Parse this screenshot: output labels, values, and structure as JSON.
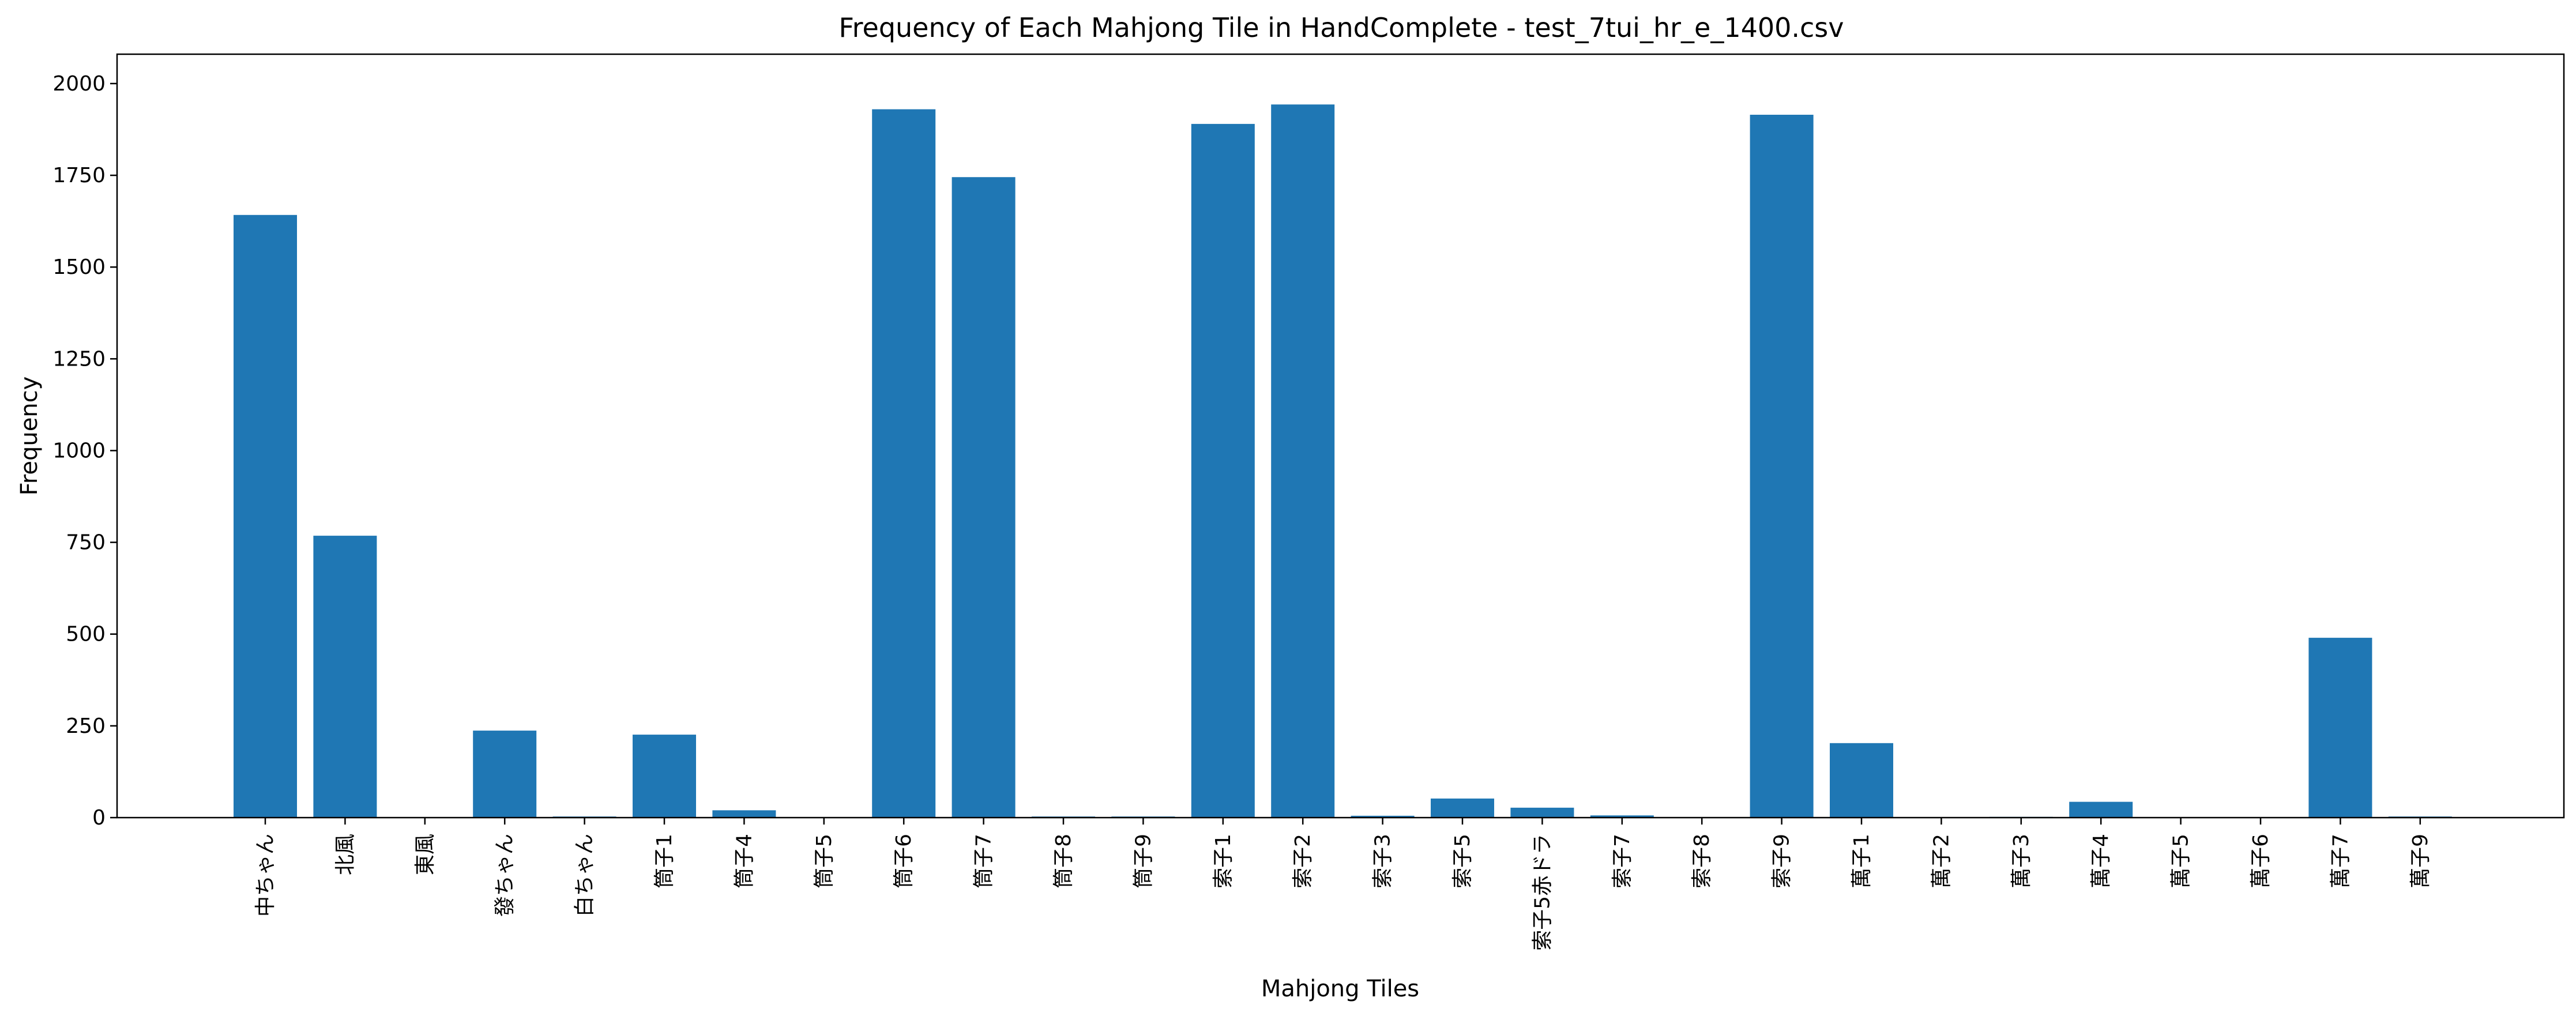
{
  "chart_data": {
    "type": "bar",
    "title": "Frequency of Each Mahjong Tile in HandComplete - test_7tui_hr_e_1400.csv",
    "xlabel": "Mahjong Tiles",
    "ylabel": "Frequency",
    "ylim": [
      0,
      2080
    ],
    "yticks": [
      0,
      250,
      500,
      750,
      1000,
      1250,
      1500,
      1750,
      2000
    ],
    "grid": false,
    "bar_color": "#1f77b4",
    "categories": [
      "中ちゃん",
      "北風",
      "東風",
      "發ちゃん",
      "白ちゃん",
      "筒子1",
      "筒子4",
      "筒子5",
      "筒子6",
      "筒子7",
      "筒子8",
      "筒子9",
      "索子1",
      "索子2",
      "索子3",
      "索子5",
      "索子5赤ドラ",
      "索子7",
      "索子8",
      "索子9",
      "萬子1",
      "萬子2",
      "萬子3",
      "萬子4",
      "萬子5",
      "萬子6",
      "萬子7",
      "萬子9"
    ],
    "values": [
      1642,
      768,
      1,
      237,
      3,
      226,
      20,
      1,
      1930,
      1745,
      3,
      3,
      1890,
      1943,
      5,
      52,
      27,
      6,
      1,
      1915,
      203,
      1,
      2,
      43,
      1,
      1,
      490,
      3
    ]
  }
}
